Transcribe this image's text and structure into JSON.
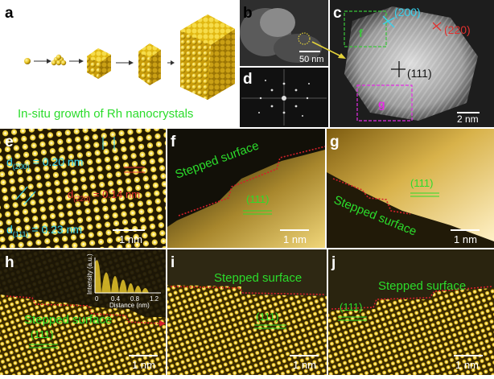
{
  "panels": {
    "a": {
      "letter": "a",
      "caption": "In-situ growth of Rh nanocrystals"
    },
    "b": {
      "letter": "b",
      "scale": "50 nm"
    },
    "c": {
      "letter": "c",
      "scale": "2 nm",
      "planes": [
        "(200)",
        "(220)",
        "(111)"
      ],
      "box_f": "f",
      "box_g": "g"
    },
    "d": {
      "letter": "d"
    },
    "e": {
      "letter": "e",
      "scale": "1 nm",
      "d200_main": "d",
      "d200_sub": "(200)",
      "d200_val": " = 0.20 nm",
      "d220_main": "d",
      "d220_sub": "(220)",
      "d220_val": " = 0.14 nm",
      "d111_main": "d",
      "d111_sub": "(111)",
      "d111_val": " = 0.23 nm"
    },
    "f": {
      "letter": "f",
      "scale": "1 nm",
      "surface": "Stepped surface",
      "plane": "(111)"
    },
    "g": {
      "letter": "g",
      "scale": "1 nm",
      "surface": "Stepped surface",
      "plane": "(111)"
    },
    "h": {
      "letter": "h",
      "scale": "1 nm",
      "surface": "Stepped surface",
      "plane": "(111)",
      "inset_ylabel": "Intensity (a.u.)",
      "inset_xlabel": "Distance (nm)",
      "inset_ticks": [
        "0",
        "0.4",
        "0.8",
        "1.2"
      ]
    },
    "i": {
      "letter": "i",
      "scale": "1 nm",
      "surface": "Stepped surface",
      "plane": "(111)"
    },
    "j": {
      "letter": "j",
      "scale": "1 nm",
      "surface": "Stepped surface",
      "plane": "(111)"
    }
  },
  "colors": {
    "label_green": "#2bdc2b",
    "plane_cyan": "#37d3f0",
    "plane_red": "#e0312f",
    "box_green": "#39c739",
    "box_magenta": "#e52be5",
    "dotted_red": "#d4202a",
    "gold": "#e6c52a"
  }
}
